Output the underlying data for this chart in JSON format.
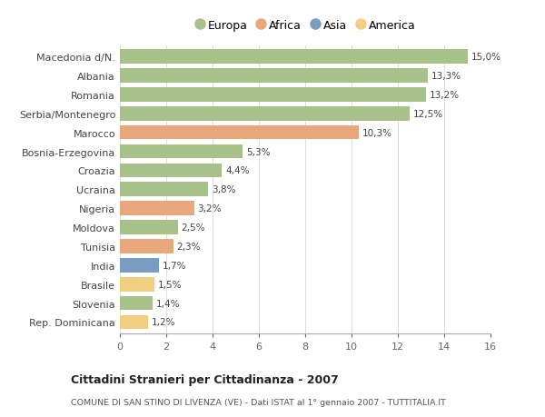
{
  "countries": [
    "Macedonia d/N.",
    "Albania",
    "Romania",
    "Serbia/Montenegro",
    "Marocco",
    "Bosnia-Erzegovina",
    "Croazia",
    "Ucraina",
    "Nigeria",
    "Moldova",
    "Tunisia",
    "India",
    "Brasile",
    "Slovenia",
    "Rep. Dominicana"
  ],
  "values": [
    15.0,
    13.3,
    13.2,
    12.5,
    10.3,
    5.3,
    4.4,
    3.8,
    3.2,
    2.5,
    2.3,
    1.7,
    1.5,
    1.4,
    1.2
  ],
  "labels": [
    "15,0%",
    "13,3%",
    "13,2%",
    "12,5%",
    "10,3%",
    "5,3%",
    "4,4%",
    "3,8%",
    "3,2%",
    "2,5%",
    "2,3%",
    "1,7%",
    "1,5%",
    "1,4%",
    "1,2%"
  ],
  "colors": [
    "#a8c08a",
    "#a8c08a",
    "#a8c08a",
    "#a8c08a",
    "#e8a87c",
    "#a8c08a",
    "#a8c08a",
    "#a8c08a",
    "#e8a87c",
    "#a8c08a",
    "#e8a87c",
    "#7a9cc0",
    "#f0d080",
    "#a8c08a",
    "#f0d080"
  ],
  "legend_labels": [
    "Europa",
    "Africa",
    "Asia",
    "America"
  ],
  "legend_colors": [
    "#a8c08a",
    "#e8a87c",
    "#7a9cc0",
    "#f0d080"
  ],
  "title_bold": "Cittadini Stranieri per Cittadinanza - 2007",
  "subtitle": "COMUNE DI SAN STINO DI LIVENZA (VE) - Dati ISTAT al 1° gennaio 2007 - TUTTITALIA.IT",
  "xlim": [
    0,
    16
  ],
  "xticks": [
    0,
    2,
    4,
    6,
    8,
    10,
    12,
    14,
    16
  ],
  "background_color": "#ffffff",
  "bar_height": 0.75
}
